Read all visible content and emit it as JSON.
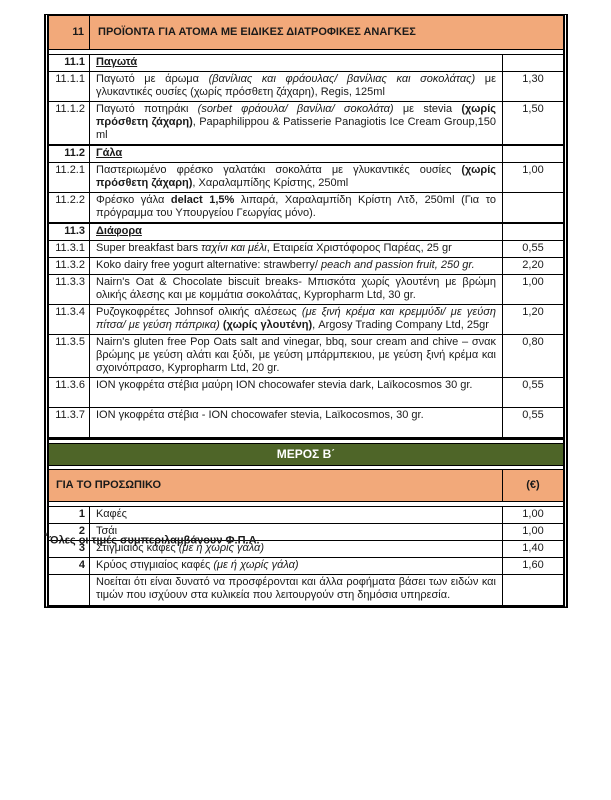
{
  "colors": {
    "orange": "#F2A97A",
    "green": "#4E6528",
    "border": "#000000"
  },
  "page": {
    "footnote_marker": "*",
    "footnote_text": "Όλες οι τιμές συμπεριλαμβάνουν Φ.Π.Α."
  },
  "part_a": {
    "header": {
      "num": "11",
      "title": "ΠΡΟΪΟΝΤΑ ΓΙΑ ΑΤΟΜΑ ΜΕ ΕΙΔΙΚΕΣ ΔΙΑΤΡΟΦΙΚΕΣ ΑΝΑΓΚΕΣ"
    },
    "rows": [
      {
        "type": "subsection",
        "num": "11.1",
        "runs": [
          {
            "t": "Παγωτά",
            "b": true,
            "u": true
          }
        ],
        "price": ""
      },
      {
        "type": "item",
        "num": "11.1.1",
        "runs": [
          {
            "t": "Παγωτό με άρωμα "
          },
          {
            "t": "(βανίλιας και φράουλας/ βανίλιας και σοκολάτας)",
            "i": true
          },
          {
            "t": " με γλυκαντικές ουσίες (χωρίς πρόσθετη ζάχαρη), Regis, 125ml"
          }
        ],
        "price": "1,30"
      },
      {
        "type": "item",
        "num": "11.1.2",
        "runs": [
          {
            "t": "Παγωτό ποτηράκι "
          },
          {
            "t": "(sorbet φράουλα/ βανίλια/ σοκολάτα)",
            "i": true
          },
          {
            "t": " με stevia "
          },
          {
            "t": "(χωρίς πρόσθετη ζάχαρη)",
            "b": true
          },
          {
            "t": ", Papaphilippou & Patisserie Panagiotis Ice Cream Group,150 ml"
          }
        ],
        "price": "1,50"
      },
      {
        "type": "subsection",
        "num": "11.2",
        "runs": [
          {
            "t": "Γάλα",
            "b": true,
            "u": true
          }
        ],
        "price": ""
      },
      {
        "type": "item",
        "num": "11.2.1",
        "runs": [
          {
            "t": "Παστεριωμένο φρέσκο γαλατάκι σοκολάτα με γλυκαντικές ουσίες "
          },
          {
            "t": "(χωρίς πρόσθετη ζάχαρη)",
            "b": true
          },
          {
            "t": ", Χαραλαμπίδης Κρίστης, 250ml"
          }
        ],
        "price": "1,00"
      },
      {
        "type": "item",
        "num": "11.2.2",
        "runs": [
          {
            "t": "Φρέσκο γάλα "
          },
          {
            "t": "delact 1,5%",
            "b": true
          },
          {
            "t": " λιπαρά, Χαραλαμπίδη Κρίστη Λτδ, 250ml (Για το πρόγραμμα του Υπουργείου Γεωργίας μόνο)."
          }
        ],
        "price": ""
      },
      {
        "type": "subsection",
        "num": "11.3",
        "runs": [
          {
            "t": "Διάφορα",
            "b": true,
            "u": true
          }
        ],
        "price": ""
      },
      {
        "type": "item",
        "num": "11.3.1",
        "runs": [
          {
            "t": "Super breakfast bars "
          },
          {
            "t": "ταχίνι και μέλι",
            "i": true
          },
          {
            "t": ", Εταιρεία Χριστόφορος Παρέας, 25 gr"
          }
        ],
        "price": "0,55"
      },
      {
        "type": "item",
        "num": "11.3.2",
        "runs": [
          {
            "t": "Koko dairy free yogurt alternative: strawberry/ "
          },
          {
            "t": "peach and passion fruit, 250 gr.",
            "i": true
          }
        ],
        "price": "2,20"
      },
      {
        "type": "item",
        "num": "11.3.3",
        "runs": [
          {
            "t": "Nairn's Oat & Chocolate biscuit breaks- Μπισκότα χωρίς γλουτένη με βρώμη ολικής άλεσης και με κομμάτια σοκολάτας, Kypropharm Ltd, 30 gr."
          }
        ],
        "price": "1,00"
      },
      {
        "type": "item",
        "num": "11.3.4",
        "runs": [
          {
            "t": "Ρυζογκοφρέτες Johnsof ολικής αλέσεως "
          },
          {
            "t": "(με ξινή κρέμα και κρεμμύδι/ με γεύση πίτσα/ με γεύση πάπρικα)",
            "i": true
          },
          {
            "t": " "
          },
          {
            "t": "(χωρίς γλουτένη)",
            "b": true
          },
          {
            "t": ", Argosy Trading Company Ltd, 25gr"
          }
        ],
        "price": "1,20"
      },
      {
        "type": "item",
        "num": "11.3.5",
        "runs": [
          {
            "t": "Nairn's gluten free Pop Oats salt and vinegar, bbq, sour cream and chive – σνακ βρώμης με γεύση αλάτι και ξύδι, με γεύση μπάρμπεκιου, με γεύση ξινή κρέμα και σχοινόπρασο, Kypropharm Ltd, 20 gr."
          }
        ],
        "price": "0,80"
      },
      {
        "type": "item",
        "tall": true,
        "num": "11.3.6",
        "runs": [
          {
            "t": "ΙΟΝ γκοφρέτα στέβια μαύρη ION chocowafer stevia dark, Laïkocosmos 30 gr."
          }
        ],
        "price": "0,55"
      },
      {
        "type": "item",
        "tall": true,
        "num": "11.3.7",
        "runs": [
          {
            "t": "ΙΟΝ  γκοφρέτα στέβια - ION  chocowafer stevia, Laïkocosmos, 30 gr."
          }
        ],
        "price": "0,55"
      }
    ]
  },
  "part_b": {
    "band_title": "ΜΕΡΟΣ Β΄",
    "header": {
      "title": "ΓΙΑ ΤΟ ΠΡΟΣΩΠΙΚΟ",
      "currency": "(€)"
    },
    "rows": [
      {
        "num": "1",
        "runs": [
          {
            "t": "Καφές"
          }
        ],
        "price": "1,00"
      },
      {
        "num": "2",
        "runs": [
          {
            "t": "Τσάι"
          }
        ],
        "price": "1,00"
      },
      {
        "num": "3",
        "runs": [
          {
            "t": "Στιγμιαίος καφές "
          },
          {
            "t": "(με ή χωρίς γάλα)",
            "i": true
          }
        ],
        "price": "1,40"
      },
      {
        "num": "4",
        "runs": [
          {
            "t": "Κρύος στιγμιαίος καφές "
          },
          {
            "t": "(με ή χωρίς γάλα)",
            "i": true
          }
        ],
        "price": "1,60"
      },
      {
        "num": "",
        "note": true,
        "runs": [
          {
            "t": "Νοείται ότι είναι δυνατό να προσφέρονται και άλλα ροφήματα βάσει των ειδών και τιμών που ισχύουν στα κυλικεία που λειτουργούν στη δημόσια υπηρεσία."
          }
        ],
        "price": ""
      }
    ]
  }
}
